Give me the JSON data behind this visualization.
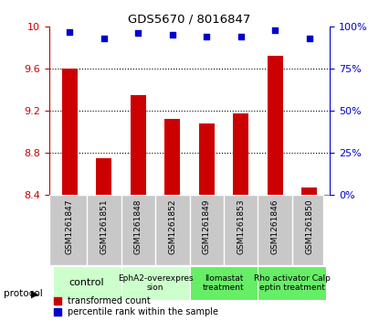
{
  "title": "GDS5670 / 8016847",
  "samples": [
    "GSM1261847",
    "GSM1261851",
    "GSM1261848",
    "GSM1261852",
    "GSM1261849",
    "GSM1261853",
    "GSM1261846",
    "GSM1261850"
  ],
  "transformed_count": [
    9.6,
    8.75,
    9.35,
    9.12,
    9.08,
    9.18,
    9.72,
    8.47
  ],
  "percentile_rank": [
    97,
    93,
    96,
    95,
    94,
    94,
    98,
    93
  ],
  "ylim_left": [
    8.4,
    10.0
  ],
  "ylim_right": [
    0,
    100
  ],
  "yticks_left": [
    8.4,
    8.8,
    9.2,
    9.6,
    10.0
  ],
  "yticks_right": [
    0,
    25,
    50,
    75,
    100
  ],
  "bar_color": "#cc0000",
  "dot_color": "#0000cc",
  "sample_bg_color": "#c8c8c8",
  "protocol_groups": [
    {
      "label": "control",
      "start": 0,
      "end": 2,
      "color": "#ccffcc"
    },
    {
      "label": "EphA2-overexpres\nsion",
      "start": 2,
      "end": 4,
      "color": "#ccffcc"
    },
    {
      "label": "Ilomastat\ntreatment",
      "start": 4,
      "end": 6,
      "color": "#66ee66"
    },
    {
      "label": "Rho activator Calp\neptin treatment",
      "start": 6,
      "end": 8,
      "color": "#66ee66"
    }
  ],
  "legend_bar_label": "transformed count",
  "legend_dot_label": "percentile rank within the sample",
  "protocol_label": "protocol",
  "background_color": "#ffffff"
}
